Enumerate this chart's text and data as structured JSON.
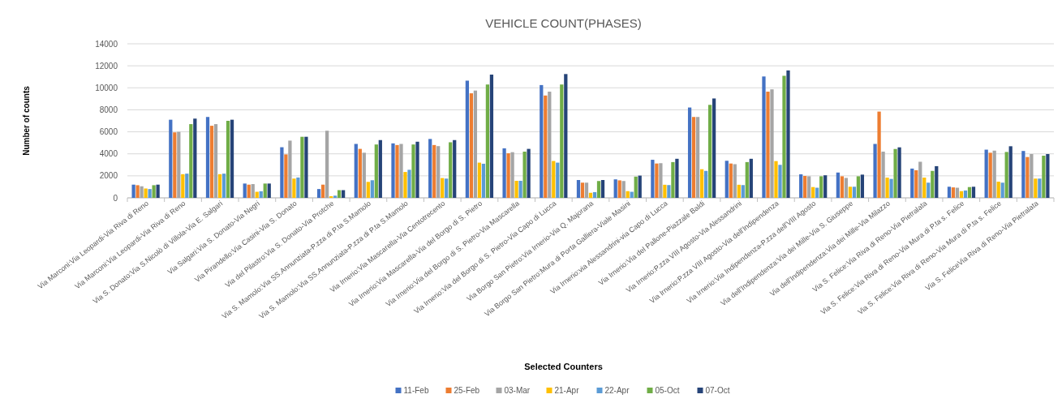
{
  "chart_data": {
    "type": "bar",
    "title": "VEHICLE COUNT(PHASES)",
    "xlabel": "Selected Counters",
    "ylabel": "Number of counts",
    "categories": [
      "Via Marconi:Via Leopardi-Via Riva di Reno",
      "Via Marconi:Via Leopardi-Via Riva di Reno",
      "Via S. Donato:Via S.Nicolò di Villola-Via E. Salgari",
      "Via Salgari:Via S. Donato-Via Negri",
      "Via Pirandello:Via Casini-Via S. Donato",
      "Via del Pilastro:Via S. Donato-Via Protche",
      "Via S. Mamolo:Via SS.Annunziata-P.zza di P.ta S.Mamolo",
      "Via S. Mamolo:Via SS.Annunziata-P.zza di P.ta S.Mamolo",
      "Via Irnerio:Via Mascarella-Via Centotrecento",
      "Via Irnerio:Via Mascarella-Via del Borgo di S. Pietro",
      "Via Irnerio:Via del Borgo di S. Pietro-Via Mascarella",
      "Via Irnerio:Via del Borgo di S. Pietro-Via Capo di Lucca",
      "Via Borgo San Pietro:Via Irnerio-Via Q. Majorana",
      "Via Borgo San Pietro:Mura di Porta Galliera-Viale Masini",
      "Via Irnerio:via Alessandrini-via Capo di Lucca",
      "Via Irnerio:Via del Pallone-Piazzale Baldi",
      "Via Irnerio:P.zza VIII Agosto-Via Alessandrini",
      "Via Irnerio:P.zza VIII Agosto-Via dell'Indipendenza",
      "Via Irnerio:Via Indipendenza-P.zza dell'VIII Agosto",
      "Via dell'Indipendenza:Via dei Mille-Via S. Giuseppe",
      "Via dell'Indipendenza:Via dei Mille-Via Milazzo",
      "Via S. Felice:Via Riva di Reno-Via Pietralata",
      "Via S. Felice:Via Riva di Reno-Via Mura di P.ta s. Felice",
      "Via S. Felice:Via Riva di Reno-Via Mura di P.ta s. Felice",
      "Via S. FeliceVia Riva di Reno-Via Pietralata"
    ],
    "series": [
      {
        "name": "11-Feb",
        "color": "#4472c4",
        "values": [
          1200,
          7100,
          7350,
          1300,
          4600,
          800,
          4900,
          4950,
          5350,
          10650,
          4500,
          10250,
          1620,
          1680,
          3460,
          8210,
          3370,
          11030,
          2140,
          2300,
          4900,
          2660,
          1010,
          4380,
          4260
        ]
      },
      {
        "name": "25-Feb",
        "color": "#ed7d31",
        "values": [
          1150,
          5950,
          6550,
          1200,
          3950,
          1200,
          4450,
          4800,
          4800,
          9500,
          4050,
          9300,
          1380,
          1590,
          3120,
          7350,
          3120,
          9650,
          1990,
          1960,
          7840,
          2510,
          950,
          4100,
          3710
        ]
      },
      {
        "name": "03-Mar",
        "color": "#a5a5a5",
        "values": [
          1050,
          6000,
          6700,
          1250,
          5200,
          6100,
          4100,
          4900,
          4700,
          9750,
          4150,
          9650,
          1380,
          1530,
          3150,
          7350,
          3060,
          9860,
          1960,
          1810,
          4200,
          3280,
          920,
          4290,
          3980
        ]
      },
      {
        "name": "21-Apr",
        "color": "#ffc000",
        "values": [
          850,
          2150,
          2150,
          550,
          1750,
          150,
          1450,
          2350,
          1800,
          3200,
          1550,
          3350,
          460,
          610,
          1190,
          2600,
          1190,
          3340,
          980,
          1010,
          1840,
          1840,
          610,
          1470,
          1750
        ]
      },
      {
        "name": "22-Apr",
        "color": "#5b9bd5",
        "values": [
          800,
          2200,
          2200,
          600,
          1850,
          200,
          1600,
          2550,
          1750,
          3100,
          1550,
          3200,
          520,
          550,
          1160,
          2450,
          1160,
          3000,
          920,
          1010,
          1720,
          1380,
          670,
          1380,
          1750
        ]
      },
      {
        "name": "05-Oct",
        "color": "#70ad47",
        "values": [
          1150,
          6700,
          7000,
          1300,
          5550,
          700,
          4850,
          4850,
          5050,
          10300,
          4200,
          10300,
          1530,
          1930,
          3250,
          8450,
          3250,
          11090,
          1960,
          1960,
          4440,
          2450,
          980,
          4170,
          3830
        ]
      },
      {
        "name": "07-Oct",
        "color": "#264478",
        "values": [
          1200,
          7200,
          7100,
          1300,
          5550,
          700,
          5250,
          5100,
          5250,
          11200,
          4450,
          11250,
          1620,
          2020,
          3550,
          9030,
          3550,
          11580,
          2050,
          2110,
          4590,
          2880,
          1010,
          4690,
          3980
        ]
      }
    ],
    "ylim": [
      0,
      14000
    ],
    "yticks": [
      0,
      2000,
      4000,
      6000,
      8000,
      10000,
      12000,
      14000
    ],
    "grid": "y",
    "legend": "bottom"
  }
}
